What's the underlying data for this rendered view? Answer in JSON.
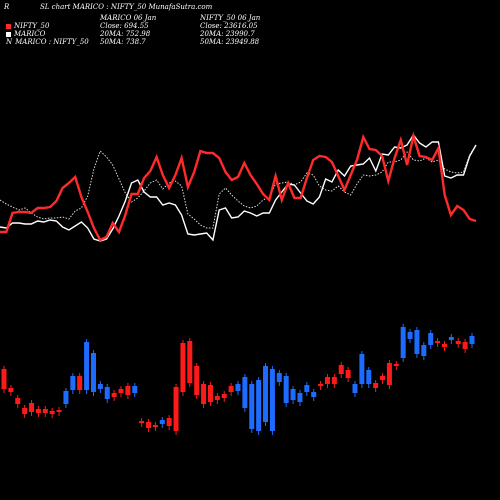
{
  "header": {
    "prefix": "R",
    "title": "SL chart MARICO : NIFTY_50  MunafaSutra.com",
    "col1": [
      "MARICO 06  Jan",
      "Close: 694.55",
      "20MA: 752.98",
      "50MA: 738.7"
    ],
    "col2": [
      "NIFTY_50  06  Jan",
      "Close: 23616.05",
      "20MA: 23990.7",
      "50MA: 23949.88"
    ]
  },
  "legend": [
    {
      "label": "NIFTY_50",
      "color": "#ff2a2a",
      "icon": "red-square"
    },
    {
      "label": "MARICO",
      "color": "#ffffff",
      "icon": "white-square"
    },
    {
      "label": "MARICO : NIFTY_50",
      "color": "#ffffff",
      "icon": "n-letter",
      "glyph": "N"
    }
  ],
  "colors": {
    "background": "#000000",
    "nifty_line": "#ff2a2a",
    "marico_line": "#ffffff",
    "ratio_line": "#dddddd",
    "candle_up": "#1e6cff",
    "candle_down": "#ff1a1a"
  },
  "chart_data": {
    "type": "line",
    "title": "SL chart MARICO : NIFTY_50",
    "series": [
      {
        "name": "NIFTY_50",
        "values": [
          232,
          232,
          213,
          212,
          212,
          213,
          208,
          208,
          207,
          201,
          188,
          183,
          177,
          197,
          212,
          228,
          240,
          237,
          223,
          232,
          215,
          194,
          194,
          178,
          171,
          157,
          175,
          188,
          175,
          158,
          187,
          172,
          151,
          153,
          153,
          158,
          172,
          180,
          177,
          163,
          175,
          184,
          194,
          200,
          176,
          200,
          183,
          198,
          198,
          178,
          160,
          156,
          157,
          162,
          176,
          190,
          175,
          160,
          137,
          149,
          150,
          156,
          181,
          158,
          140,
          165,
          136,
          156,
          157,
          160,
          148,
          195,
          215,
          206,
          210,
          219,
          221
        ]
      },
      {
        "name": "MARICO",
        "values": [
          227,
          228,
          223,
          223,
          224,
          224,
          221,
          222,
          220,
          221,
          227,
          230,
          226,
          222,
          228,
          239,
          241,
          239,
          229,
          216,
          201,
          183,
          180,
          192,
          197,
          197,
          205,
          203,
          205,
          215,
          234,
          235,
          234,
          233,
          240,
          210,
          208,
          218,
          217,
          211,
          213,
          216,
          213,
          213,
          200,
          192,
          184,
          185,
          193,
          201,
          204,
          197,
          179,
          182,
          170,
          176,
          166,
          165,
          164,
          158,
          171,
          154,
          155,
          147,
          148,
          145,
          135,
          143,
          147,
          142,
          142,
          176,
          178,
          175,
          175,
          156,
          145
        ]
      },
      {
        "name": "MARICO : NIFTY_50",
        "values": [
          200,
          204,
          207,
          210,
          208,
          213,
          217,
          219,
          218,
          218,
          217,
          219,
          211,
          208,
          196,
          169,
          151,
          157,
          165,
          179,
          193,
          202,
          198,
          191,
          183,
          180,
          189,
          183,
          181,
          186,
          214,
          219,
          225,
          228,
          228,
          194,
          188,
          195,
          201,
          206,
          208,
          206,
          200,
          197,
          184,
          183,
          182,
          185,
          182,
          173,
          175,
          186,
          190,
          191,
          186,
          192,
          195,
          184,
          175,
          176,
          175,
          172,
          162,
          162,
          160,
          152,
          160,
          161,
          158,
          162,
          160,
          169,
          172,
          173,
          172,
          155,
          145
        ]
      },
      {
        "name": "candles",
        "open": [
          369,
          388,
          398,
          408,
          403,
          409,
          409,
          411,
          410,
          404,
          390,
          376,
          390,
          392,
          389,
          399,
          393,
          389,
          386,
          393,
          421,
          422,
          425,
          424,
          418,
          387,
          343,
          341,
          366,
          384,
          385,
          396,
          394,
          386,
          391,
          408,
          429,
          431,
          422,
          431,
          382,
          403,
          400,
          402,
          392,
          397,
          384,
          377,
          377,
          365,
          370,
          393,
          384,
          384,
          383,
          376,
          363,
          364,
          358,
          339,
          354,
          356,
          345,
          341,
          344,
          340,
          341,
          342,
          344
        ],
        "close": [
          389,
          392,
          404,
          414,
          412,
          413,
          413,
          414,
          411,
          391,
          376,
          390,
          342,
          353,
          384,
          387,
          397,
          393,
          395,
          386,
          422,
          428,
          426,
          420,
          426,
          431,
          392,
          383,
          395,
          404,
          402,
          400,
          398,
          392,
          384,
          377,
          384,
          380,
          366,
          369,
          373,
          376,
          389,
          393,
          385,
          392,
          384,
          384,
          384,
          374,
          378,
          384,
          354,
          370,
          388,
          380,
          385,
          364,
          327,
          332,
          330,
          345,
          333,
          343,
          347,
          337,
          344,
          349,
          336
        ]
      }
    ],
    "xlabel": "",
    "ylabel": ""
  }
}
